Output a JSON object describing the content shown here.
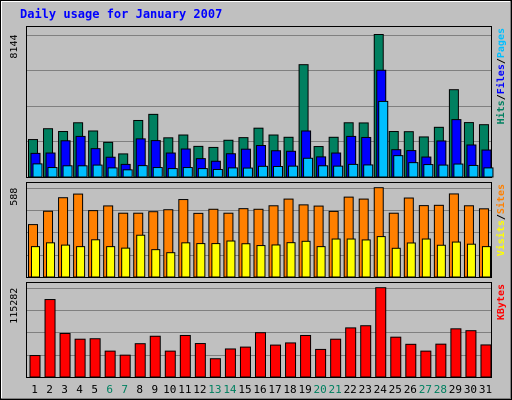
{
  "chart_data": {
    "type": "bar",
    "title": "Daily usage for January 2007",
    "categories": [
      "1",
      "2",
      "3",
      "4",
      "5",
      "6",
      "7",
      "8",
      "9",
      "10",
      "11",
      "12",
      "13",
      "14",
      "15",
      "16",
      "17",
      "18",
      "19",
      "20",
      "21",
      "22",
      "23",
      "24",
      "25",
      "26",
      "27",
      "28",
      "29",
      "30",
      "31"
    ],
    "weekend_days": [
      "6",
      "7",
      "13",
      "14",
      "20",
      "21",
      "27",
      "28"
    ],
    "panels": [
      {
        "id": "hits",
        "max_label": "8144",
        "ymax": 8144,
        "ylabel_parts": [
          {
            "text": "Hits",
            "color": "#008060"
          },
          {
            "text": "/",
            "color": "#000000"
          },
          {
            "text": "Files",
            "color": "#0000ff"
          },
          {
            "text": "/",
            "color": "#000000"
          },
          {
            "text": "Pages",
            "color": "#00bfff"
          }
        ],
        "series": [
          {
            "name": "Hits",
            "color": "#008060",
            "values": [
              2140,
              2760,
              2600,
              3100,
              2630,
              1980,
              1320,
              3230,
              3580,
              2240,
              2400,
              1750,
              1690,
              2100,
              2250,
              2790,
              2400,
              2270,
              6420,
              1740,
              2270,
              3100,
              3090,
              8144,
              2600,
              2590,
              2290,
              2840,
              4990,
              3110,
              2990
            ]
          },
          {
            "name": "Files",
            "color": "#0000ff",
            "values": [
              1350,
              1370,
              2070,
              2320,
              1620,
              1130,
              720,
              2180,
              2080,
              1370,
              1600,
              1050,
              900,
              1330,
              1590,
              1800,
              1500,
              1470,
              2630,
              1150,
              1370,
              2320,
              2260,
              6100,
              1560,
              1510,
              1140,
              2060,
              3280,
              1830,
              1540
            ]
          },
          {
            "name": "Pages",
            "color": "#00bfff",
            "values": [
              750,
              540,
              640,
              640,
              680,
              520,
              410,
              650,
              540,
              480,
              540,
              480,
              430,
              520,
              510,
              610,
              600,
              620,
              1070,
              640,
              620,
              720,
              690,
              4320,
              1220,
              820,
              710,
              680,
              740,
              660,
              520
            ]
          }
        ]
      },
      {
        "id": "visits",
        "max_label": "588",
        "ymax": 588,
        "ylabel_parts": [
          {
            "text": "Visits",
            "color": "#ffff00"
          },
          {
            "text": "/",
            "color": "#000000"
          },
          {
            "text": "Sites",
            "color": "#ff8000"
          }
        ],
        "series": [
          {
            "name": "Visits",
            "color": "#ff8000",
            "values": [
              345,
              433,
              522,
              546,
              437,
              468,
              420,
              420,
              430,
              443,
              510,
              419,
              446,
              420,
              450,
              446,
              469,
              513,
              475,
              467,
              432,
              526,
              513,
              588,
              420,
              520,
              470,
              472,
              547,
              469,
              449
            ]
          },
          {
            "name": "Sites",
            "color": "#ffff00",
            "values": [
              200,
              225,
              210,
              200,
              245,
              200,
              190,
              275,
              180,
              160,
              225,
              220,
              220,
              237,
              219,
              207,
              211,
              226,
              235,
              200,
              250,
              250,
              244,
              266,
              189,
              224,
              250,
              209,
              230,
              216,
              200
            ]
          }
        ]
      },
      {
        "id": "kbytes",
        "max_label": "115282",
        "ymax": 115282,
        "ylabel_parts": [
          {
            "text": "KBytes",
            "color": "#ff0000"
          }
        ],
        "series": [
          {
            "name": "KBytes",
            "color": "#ff0000",
            "values": [
              27700,
              100000,
              56200,
              48800,
              49400,
              33400,
              28200,
              43000,
              52600,
              33400,
              53600,
              43200,
              23600,
              36200,
              38600,
              57200,
              41200,
              44000,
              53600,
              35600,
              48800,
              63400,
              66200,
              115282,
              51400,
              42200,
              33400,
              42400,
              62200,
              59800,
              41400
            ]
          }
        ]
      }
    ]
  }
}
